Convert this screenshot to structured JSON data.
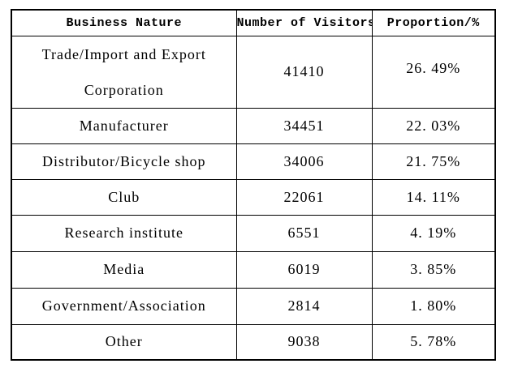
{
  "page": {
    "background": "#ffffff",
    "border_color": "#000000",
    "text_color": "#000000"
  },
  "table": {
    "header": {
      "business_nature": "Business Nature",
      "visitors": "Number of Visitors",
      "proportion": "Proportion/%"
    },
    "rows": [
      {
        "name_line1": "Trade/Import and Export",
        "name_line2": "Corporation",
        "visitors": "41410",
        "proportion": "26. 49%"
      },
      {
        "name": "Manufacturer",
        "visitors": "34451",
        "proportion": "22. 03%"
      },
      {
        "name": "Distributor/Bicycle shop",
        "visitors": "34006",
        "proportion": "21. 75%"
      },
      {
        "name": "Club",
        "visitors": "22061",
        "proportion": "14. 11%"
      },
      {
        "name": "Research institute",
        "visitors": "6551",
        "proportion": "4. 19%"
      },
      {
        "name": "Media",
        "visitors": "6019",
        "proportion": "3. 85%"
      },
      {
        "name": "Government/Association",
        "visitors": "2814",
        "proportion": "1. 80%"
      },
      {
        "name": "Other",
        "visitors": "9038",
        "proportion": "5. 78%"
      }
    ]
  },
  "chart_data": {
    "type": "table",
    "title": "",
    "columns": [
      "Business Nature",
      "Number of Visitors",
      "Proportion/%"
    ],
    "rows": [
      [
        "Trade/Import and Export Corporation",
        41410,
        "26.49%"
      ],
      [
        "Manufacturer",
        34451,
        "22.03%"
      ],
      [
        "Distributor/Bicycle shop",
        34006,
        "21.75%"
      ],
      [
        "Club",
        22061,
        "14.11%"
      ],
      [
        "Research institute",
        6551,
        "4.19%"
      ],
      [
        "Media",
        6019,
        "3.85%"
      ],
      [
        "Government/Association",
        2814,
        "1.80%"
      ],
      [
        "Other",
        9038,
        "5.78%"
      ]
    ]
  }
}
